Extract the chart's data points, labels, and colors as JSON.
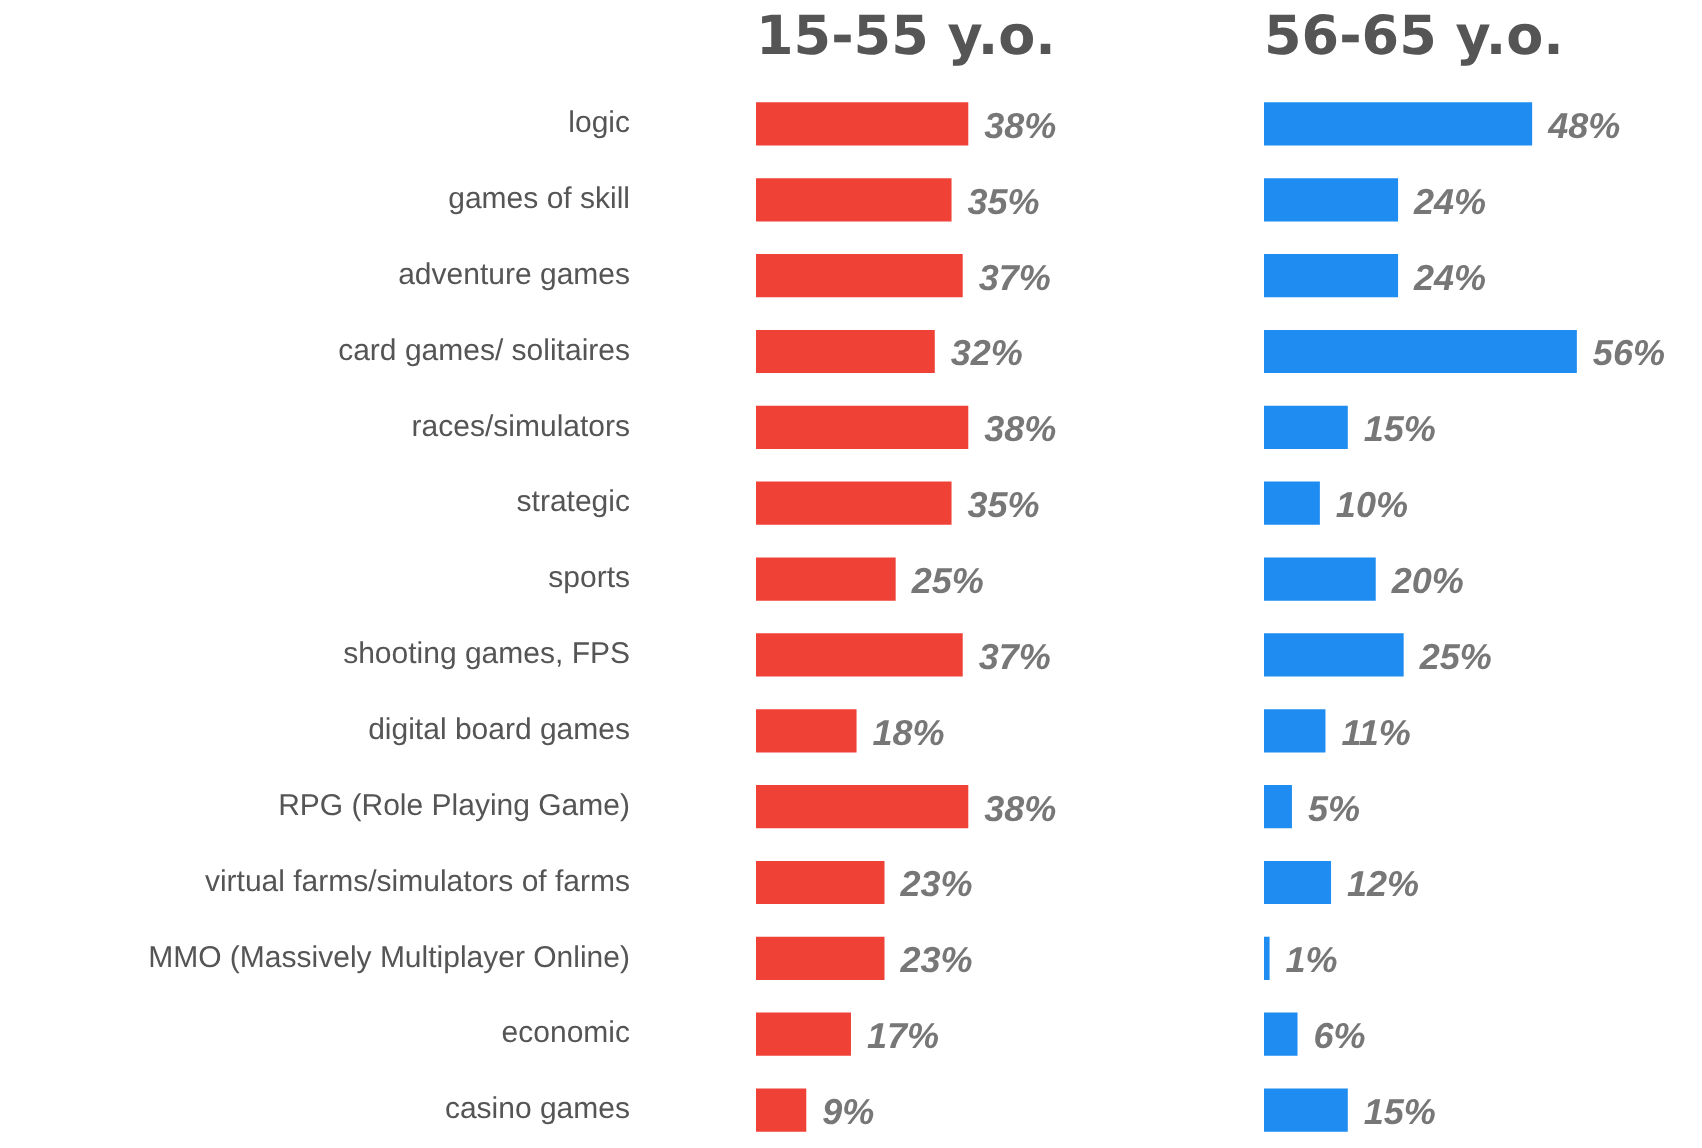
{
  "chart_data": [
    {
      "type": "bar",
      "orientation": "horizontal",
      "title": "15-55 y.o.",
      "categories": [
        "logic",
        "games of skill",
        "adventure games",
        "card games/ solitaires",
        "races/simulators",
        "strategic",
        "sports",
        "shooting games, FPS",
        "digital board games",
        "RPG (Role Playing Game)",
        "virtual farms/simulators of farms",
        "MMO (Massively Multiplayer Online)",
        "economic",
        "casino games"
      ],
      "color": "#f04136",
      "values": [
        38,
        35,
        37,
        32,
        38,
        35,
        25,
        37,
        18,
        38,
        23,
        23,
        17,
        9
      ],
      "value_labels": [
        "38%",
        "35%",
        "37%",
        "32%",
        "38%",
        "35%",
        "25%",
        "37%",
        "18%",
        "38%",
        "23%",
        "23%",
        "17%",
        "9%"
      ]
    },
    {
      "type": "bar",
      "orientation": "horizontal",
      "title": "56-65 y.o.",
      "categories": [
        null,
        null,
        null,
        null,
        null,
        null,
        null,
        null,
        null,
        null,
        null,
        null,
        null,
        null
      ],
      "color": "#1e8cf0",
      "values": [
        48,
        24,
        24,
        56,
        15,
        10,
        20,
        25,
        11,
        5,
        12,
        1,
        6,
        15
      ],
      "value_labels": [
        "48%",
        "24%",
        "24%",
        "56%",
        "15%",
        "10%",
        "20%",
        "25%",
        "11%",
        "5%",
        "12%",
        "1%",
        "6%",
        "15%"
      ]
    }
  ]
}
